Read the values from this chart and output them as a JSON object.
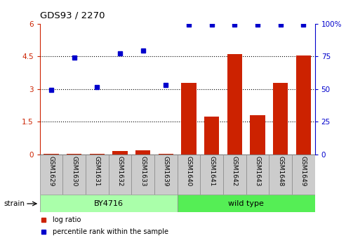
{
  "title": "GDS93 / 2270",
  "samples": [
    "GSM1629",
    "GSM1630",
    "GSM1631",
    "GSM1632",
    "GSM1633",
    "GSM1639",
    "GSM1640",
    "GSM1641",
    "GSM1642",
    "GSM1643",
    "GSM1648",
    "GSM1649"
  ],
  "log_ratio": [
    0.05,
    0.05,
    0.05,
    0.15,
    0.2,
    0.05,
    3.3,
    1.75,
    4.6,
    1.8,
    3.3,
    4.55
  ],
  "percentile_rank_scaled": [
    2.95,
    4.45,
    3.1,
    4.65,
    4.75,
    3.2,
    5.97,
    5.97,
    5.97,
    5.97,
    5.97,
    5.97
  ],
  "bar_color": "#cc2200",
  "dot_color": "#0000cc",
  "left_ylim": [
    0,
    6
  ],
  "left_yticks": [
    0,
    1.5,
    3.0,
    4.5,
    6.0
  ],
  "left_yticklabels": [
    "0",
    "1.5",
    "3",
    "4.5",
    "6"
  ],
  "right_yticks_scaled": [
    0.0,
    1.5,
    3.0,
    4.5,
    6.0
  ],
  "right_yticklabels": [
    "0",
    "25",
    "50",
    "75",
    "100%"
  ],
  "dotted_lines": [
    1.5,
    3.0,
    4.5
  ],
  "group1_label": "BY4716",
  "group2_label": "wild type",
  "group1_color": "#aaffaa",
  "group2_color": "#55ee55",
  "sample_bg_color": "#cccccc",
  "strain_label": "strain",
  "legend_bar_label": "log ratio",
  "legend_dot_label": "percentile rank within the sample"
}
